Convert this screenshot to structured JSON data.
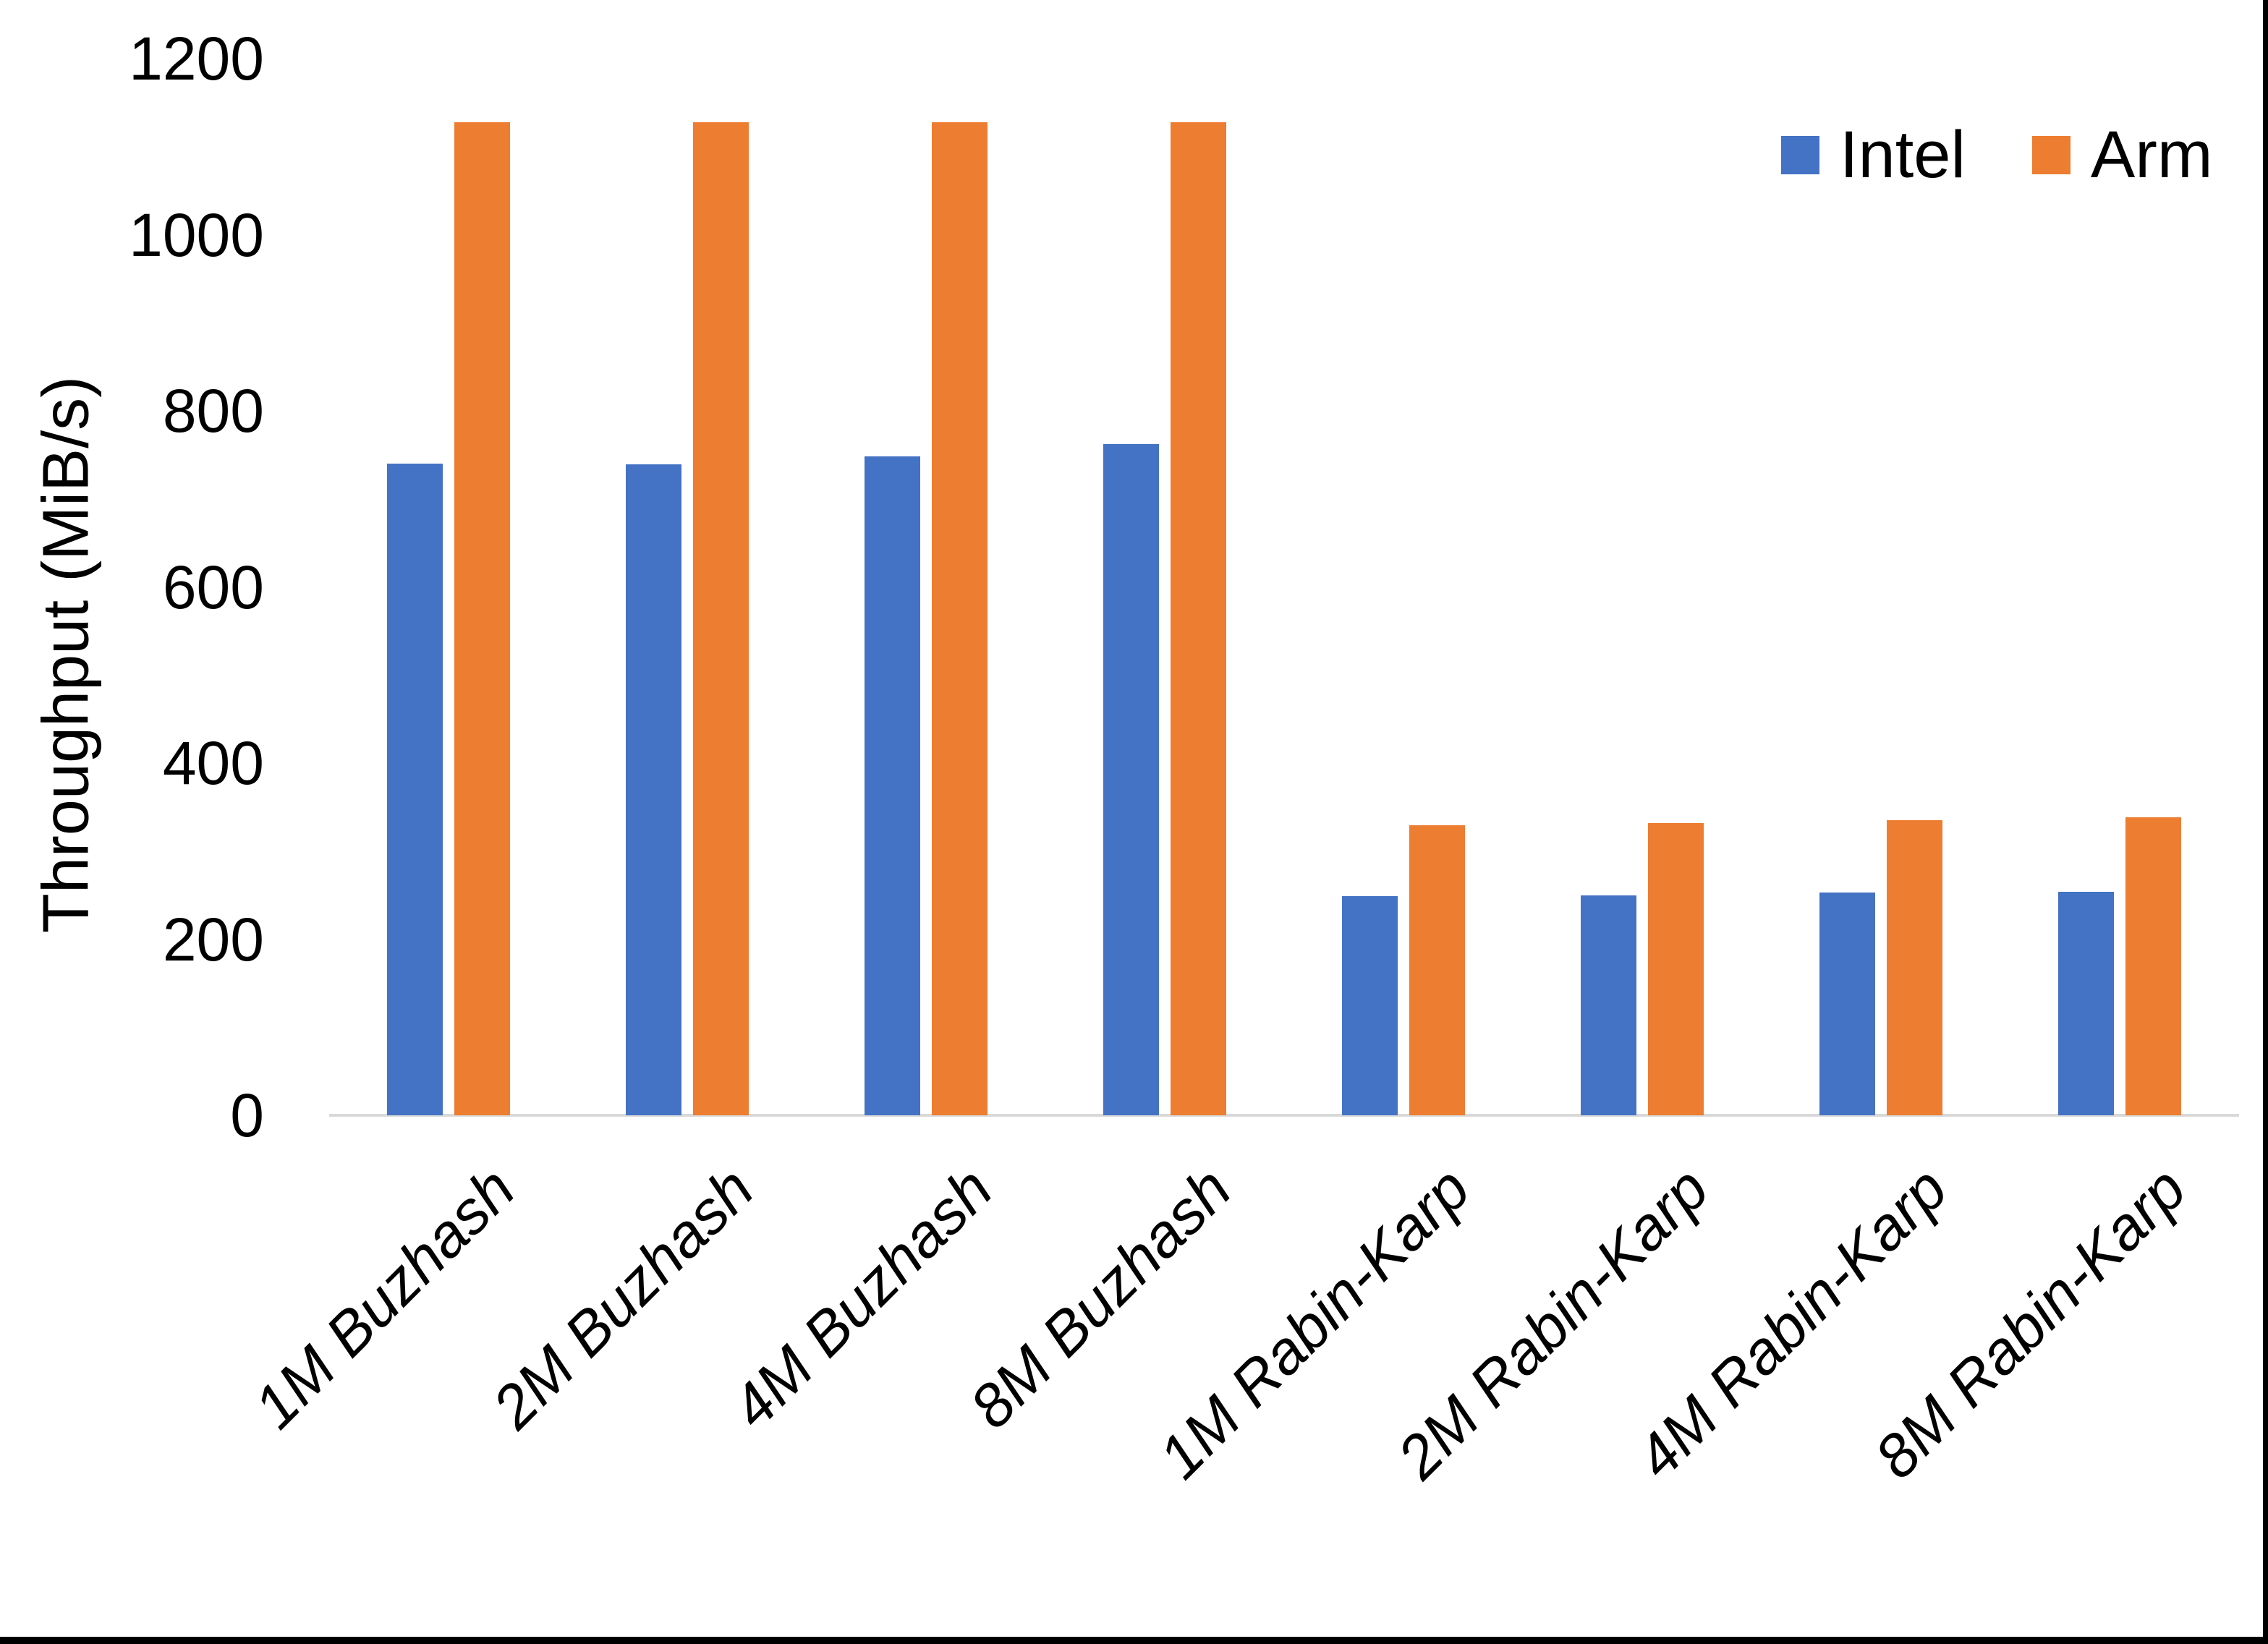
{
  "chart_data": {
    "type": "bar",
    "title": "",
    "xlabel": "",
    "ylabel": "Throughput (MiB/s)",
    "categories": [
      "1M Buzhash",
      "2M Buzhash",
      "4M Buzhash",
      "8M Buzhash",
      "1M Rabin-Karp",
      "2M Rabin-Karp",
      "4M Rabin-Karp",
      "8M Rabin-Karp"
    ],
    "series": [
      {
        "name": "Intel",
        "color": "#4472C4",
        "values": [
          740,
          739,
          748,
          762,
          249,
          250,
          253,
          254
        ]
      },
      {
        "name": "Arm",
        "color": "#ED7D31",
        "values": [
          1128,
          1128,
          1128,
          1128,
          329,
          332,
          335,
          338
        ]
      }
    ],
    "ylim": [
      0,
      1200
    ],
    "yticks": [
      0,
      200,
      400,
      600,
      800,
      1000,
      1200
    ],
    "grid": false,
    "legend_position": "top-right"
  },
  "colors": {
    "axis_line": "#D9D9D9",
    "text": "#000000",
    "frame": "#000000",
    "background": "#FFFFFF"
  }
}
